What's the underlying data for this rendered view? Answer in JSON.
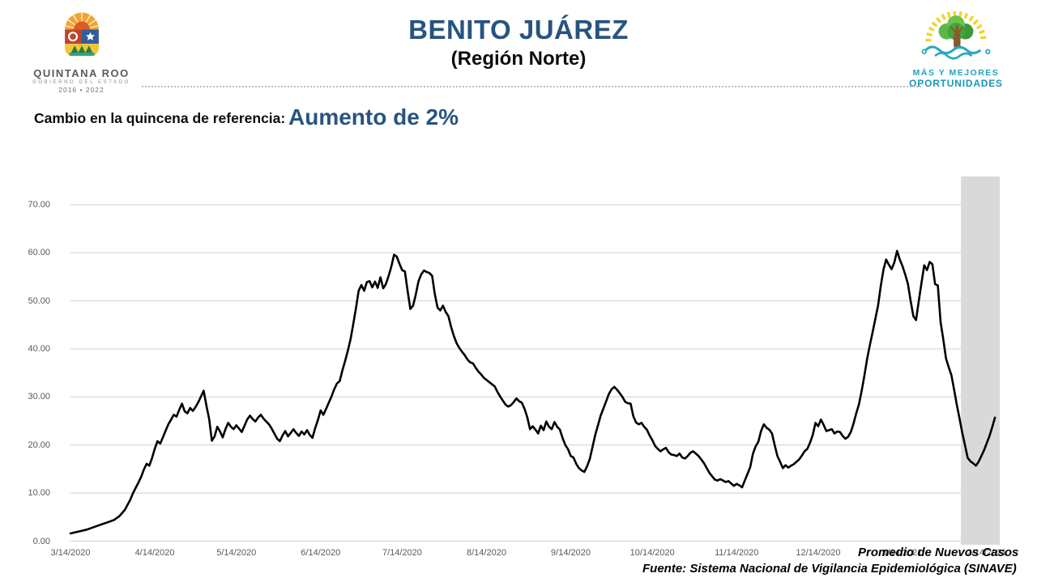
{
  "header": {
    "title": "BENITO JUÁREZ",
    "subtitle": "(Región Norte)",
    "left_logo": {
      "name": "quintana-roo-crest",
      "line1": "QUINTANA ROO",
      "line2": "GOBIERNO DEL ESTADO",
      "line3": "2016 • 2022"
    },
    "right_logo": {
      "name": "mas-y-mejores-tree",
      "line1": "MÁS Y MEJORES",
      "line2": "OPORTUNIDADES"
    }
  },
  "reference": {
    "label": "Cambio en la quincena de referencia:",
    "value": "Aumento de 2%"
  },
  "footer": {
    "source": "Fuente: Sistema Nacional de Vigilancia Epidemiológica (SINAVE)"
  },
  "colors": {
    "title_blue": "#27547f",
    "grid": "#d9d9d9",
    "band": "#d9d9d9",
    "line": "#000000",
    "axis_text": "#595959",
    "teal": "#23a2bd"
  },
  "chart_data": {
    "type": "line",
    "title": "",
    "series_label": "Promedio de Nuevos Casos",
    "xlabel": "",
    "ylabel": "",
    "ylim": [
      0,
      75.7
    ],
    "grid": true,
    "legend_position": "bottom-right-overlapping-axis",
    "start_date": "3/14/2020",
    "x_unit": "days since 3/14/2020",
    "y_ticks": [
      {
        "v": 0,
        "label": "0.00"
      },
      {
        "v": 10,
        "label": "10.00"
      },
      {
        "v": 20,
        "label": "20.00"
      },
      {
        "v": 30,
        "label": "30.00"
      },
      {
        "v": 40,
        "label": "40.00"
      },
      {
        "v": 50,
        "label": "50.00"
      },
      {
        "v": 60,
        "label": "60.00"
      },
      {
        "v": 70,
        "label": "70.00"
      }
    ],
    "x_ticks": [
      {
        "d": 0,
        "label": "3/14/2020"
      },
      {
        "d": 31,
        "label": "4/14/2020"
      },
      {
        "d": 61,
        "label": "5/14/2020"
      },
      {
        "d": 92,
        "label": "6/14/2020"
      },
      {
        "d": 122,
        "label": "7/14/2020"
      },
      {
        "d": 153,
        "label": "8/14/2020"
      },
      {
        "d": 184,
        "label": "9/14/2020"
      },
      {
        "d": 214,
        "label": "10/14/2020"
      },
      {
        "d": 245,
        "label": "11/14/2020"
      },
      {
        "d": 275,
        "label": "12/14/2020"
      },
      {
        "d": 306,
        "label": "1/14/2021"
      },
      {
        "d": 337,
        "label": "2/14/2021"
      }
    ],
    "highlight_band": {
      "start_day": 327.5,
      "end_day": 341.7,
      "meaning": "quincena de referencia"
    },
    "points": [
      [
        0,
        1.6
      ],
      [
        3,
        2.0
      ],
      [
        6,
        2.4
      ],
      [
        9,
        3.0
      ],
      [
        12,
        3.6
      ],
      [
        14,
        4.0
      ],
      [
        16,
        4.4
      ],
      [
        18,
        5.2
      ],
      [
        20,
        6.5
      ],
      [
        22,
        8.6
      ],
      [
        23,
        10.0
      ],
      [
        25,
        12.2
      ],
      [
        26,
        13.4
      ],
      [
        27,
        14.9
      ],
      [
        28,
        16.1
      ],
      [
        29,
        15.7
      ],
      [
        30,
        17.3
      ],
      [
        31,
        19.2
      ],
      [
        32,
        20.8
      ],
      [
        33,
        20.3
      ],
      [
        34,
        21.6
      ],
      [
        35,
        23.0
      ],
      [
        36,
        24.3
      ],
      [
        37,
        25.3
      ],
      [
        38,
        26.3
      ],
      [
        39,
        25.9
      ],
      [
        40,
        27.3
      ],
      [
        41,
        28.6
      ],
      [
        42,
        27.0
      ],
      [
        43,
        26.6
      ],
      [
        44,
        27.7
      ],
      [
        45,
        27.1
      ],
      [
        46,
        27.9
      ],
      [
        47,
        28.9
      ],
      [
        48,
        30.1
      ],
      [
        49,
        31.3
      ],
      [
        50,
        28.2
      ],
      [
        51,
        25.4
      ],
      [
        52,
        20.9
      ],
      [
        53,
        21.8
      ],
      [
        54,
        23.8
      ],
      [
        55,
        22.8
      ],
      [
        56,
        21.6
      ],
      [
        57,
        23.3
      ],
      [
        58,
        24.6
      ],
      [
        59,
        23.8
      ],
      [
        60,
        23.3
      ],
      [
        61,
        24.1
      ],
      [
        62,
        23.4
      ],
      [
        63,
        22.7
      ],
      [
        64,
        24.0
      ],
      [
        65,
        25.3
      ],
      [
        66,
        26.1
      ],
      [
        67,
        25.4
      ],
      [
        68,
        24.9
      ],
      [
        69,
        25.7
      ],
      [
        70,
        26.3
      ],
      [
        71,
        25.5
      ],
      [
        72,
        24.9
      ],
      [
        73,
        24.3
      ],
      [
        74,
        23.4
      ],
      [
        76,
        21.3
      ],
      [
        77,
        20.8
      ],
      [
        78,
        22.0
      ],
      [
        79,
        22.9
      ],
      [
        80,
        21.8
      ],
      [
        81,
        22.5
      ],
      [
        82,
        23.3
      ],
      [
        83,
        22.5
      ],
      [
        84,
        21.9
      ],
      [
        85,
        22.8
      ],
      [
        86,
        22.2
      ],
      [
        87,
        23.1
      ],
      [
        88,
        22.1
      ],
      [
        89,
        21.5
      ],
      [
        90,
        23.5
      ],
      [
        91,
        25.2
      ],
      [
        92,
        27.2
      ],
      [
        93,
        26.3
      ],
      [
        94,
        27.5
      ],
      [
        95,
        28.8
      ],
      [
        96,
        30.1
      ],
      [
        97,
        31.6
      ],
      [
        98,
        32.8
      ],
      [
        99,
        33.3
      ],
      [
        100,
        35.5
      ],
      [
        101,
        37.5
      ],
      [
        102,
        39.6
      ],
      [
        103,
        42.0
      ],
      [
        104,
        45.1
      ],
      [
        105,
        48.5
      ],
      [
        106,
        52.1
      ],
      [
        107,
        53.3
      ],
      [
        108,
        52.1
      ],
      [
        109,
        53.9
      ],
      [
        110,
        54.1
      ],
      [
        111,
        52.8
      ],
      [
        112,
        54.0
      ],
      [
        113,
        52.7
      ],
      [
        114,
        54.9
      ],
      [
        115,
        52.6
      ],
      [
        116,
        53.5
      ],
      [
        117,
        55.2
      ],
      [
        118,
        57.1
      ],
      [
        119,
        59.6
      ],
      [
        120,
        59.2
      ],
      [
        121,
        57.7
      ],
      [
        122,
        56.4
      ],
      [
        123,
        56.1
      ],
      [
        124,
        52.0
      ],
      [
        125,
        48.3
      ],
      [
        126,
        49.0
      ],
      [
        127,
        51.3
      ],
      [
        128,
        54.1
      ],
      [
        129,
        55.5
      ],
      [
        130,
        56.3
      ],
      [
        131,
        56.0
      ],
      [
        132,
        55.8
      ],
      [
        133,
        55.2
      ],
      [
        134,
        51.4
      ],
      [
        135,
        48.6
      ],
      [
        136,
        48.0
      ],
      [
        137,
        49.0
      ],
      [
        138,
        47.7
      ],
      [
        139,
        46.8
      ],
      [
        140,
        44.5
      ],
      [
        141,
        42.7
      ],
      [
        142,
        41.2
      ],
      [
        143,
        40.2
      ],
      [
        144,
        39.4
      ],
      [
        145,
        38.7
      ],
      [
        146,
        37.8
      ],
      [
        147,
        37.2
      ],
      [
        148,
        37.0
      ],
      [
        149,
        36.1
      ],
      [
        150,
        35.3
      ],
      [
        151,
        34.7
      ],
      [
        152,
        34.0
      ],
      [
        154,
        33.1
      ],
      [
        156,
        32.2
      ],
      [
        157,
        31.1
      ],
      [
        158,
        30.1
      ],
      [
        160,
        28.4
      ],
      [
        161,
        28.0
      ],
      [
        162,
        28.3
      ],
      [
        163,
        28.9
      ],
      [
        164,
        29.7
      ],
      [
        165,
        29.1
      ],
      [
        166,
        28.8
      ],
      [
        167,
        27.5
      ],
      [
        168,
        25.8
      ],
      [
        169,
        23.3
      ],
      [
        170,
        23.9
      ],
      [
        171,
        23.2
      ],
      [
        172,
        22.4
      ],
      [
        173,
        24.0
      ],
      [
        174,
        23.1
      ],
      [
        175,
        24.9
      ],
      [
        176,
        23.8
      ],
      [
        177,
        23.3
      ],
      [
        178,
        24.8
      ],
      [
        179,
        23.8
      ],
      [
        180,
        23.2
      ],
      [
        181,
        21.4
      ],
      [
        182,
        20.0
      ],
      [
        183,
        19.1
      ],
      [
        184,
        17.7
      ],
      [
        185,
        17.4
      ],
      [
        186,
        16.1
      ],
      [
        187,
        15.2
      ],
      [
        188,
        14.7
      ],
      [
        189,
        14.4
      ],
      [
        190,
        15.6
      ],
      [
        191,
        17.1
      ],
      [
        192,
        19.6
      ],
      [
        193,
        22.1
      ],
      [
        194,
        24.1
      ],
      [
        195,
        26.1
      ],
      [
        196,
        27.6
      ],
      [
        197,
        29.1
      ],
      [
        198,
        30.6
      ],
      [
        199,
        31.6
      ],
      [
        200,
        32.1
      ],
      [
        201,
        31.5
      ],
      [
        202,
        30.8
      ],
      [
        203,
        30.0
      ],
      [
        204,
        29.0
      ],
      [
        205,
        28.7
      ],
      [
        206,
        28.6
      ],
      [
        207,
        26.0
      ],
      [
        208,
        24.7
      ],
      [
        209,
        24.3
      ],
      [
        210,
        24.6
      ],
      [
        211,
        23.8
      ],
      [
        212,
        23.2
      ],
      [
        213,
        22.0
      ],
      [
        214,
        21.0
      ],
      [
        215,
        19.8
      ],
      [
        216,
        19.2
      ],
      [
        217,
        18.7
      ],
      [
        218,
        19.1
      ],
      [
        219,
        19.4
      ],
      [
        220,
        18.5
      ],
      [
        221,
        18.0
      ],
      [
        222,
        17.9
      ],
      [
        223,
        17.7
      ],
      [
        224,
        18.2
      ],
      [
        225,
        17.4
      ],
      [
        226,
        17.2
      ],
      [
        227,
        17.7
      ],
      [
        228,
        18.4
      ],
      [
        229,
        18.7
      ],
      [
        230,
        18.2
      ],
      [
        231,
        17.7
      ],
      [
        232,
        17.0
      ],
      [
        233,
        16.2
      ],
      [
        234,
        15.2
      ],
      [
        235,
        14.2
      ],
      [
        236,
        13.5
      ],
      [
        237,
        12.8
      ],
      [
        238,
        12.6
      ],
      [
        239,
        12.9
      ],
      [
        240,
        12.6
      ],
      [
        241,
        12.3
      ],
      [
        242,
        12.5
      ],
      [
        243,
        12.0
      ],
      [
        244,
        11.5
      ],
      [
        245,
        11.9
      ],
      [
        246,
        11.6
      ],
      [
        247,
        11.2
      ],
      [
        248,
        12.6
      ],
      [
        249,
        14.0
      ],
      [
        250,
        15.4
      ],
      [
        251,
        18.2
      ],
      [
        252,
        19.7
      ],
      [
        253,
        20.7
      ],
      [
        254,
        22.9
      ],
      [
        255,
        24.3
      ],
      [
        256,
        23.6
      ],
      [
        257,
        23.2
      ],
      [
        258,
        22.4
      ],
      [
        259,
        20.0
      ],
      [
        260,
        17.7
      ],
      [
        261,
        16.5
      ],
      [
        262,
        15.2
      ],
      [
        263,
        15.8
      ],
      [
        264,
        15.3
      ],
      [
        265,
        15.7
      ],
      [
        266,
        16.0
      ],
      [
        267,
        16.5
      ],
      [
        268,
        17.0
      ],
      [
        269,
        17.8
      ],
      [
        270,
        18.7
      ],
      [
        271,
        19.2
      ],
      [
        272,
        20.5
      ],
      [
        273,
        22.1
      ],
      [
        274,
        24.6
      ],
      [
        275,
        23.9
      ],
      [
        276,
        25.3
      ],
      [
        277,
        24.2
      ],
      [
        278,
        22.9
      ],
      [
        279,
        23.1
      ],
      [
        280,
        23.3
      ],
      [
        281,
        22.4
      ],
      [
        282,
        22.8
      ],
      [
        283,
        22.7
      ],
      [
        284,
        21.9
      ],
      [
        285,
        21.3
      ],
      [
        286,
        21.7
      ],
      [
        287,
        22.7
      ],
      [
        288,
        24.5
      ],
      [
        289,
        26.6
      ],
      [
        290,
        28.5
      ],
      [
        291,
        31.3
      ],
      [
        292,
        34.5
      ],
      [
        293,
        37.9
      ],
      [
        294,
        40.8
      ],
      [
        295,
        43.4
      ],
      [
        296,
        46.2
      ],
      [
        297,
        49.0
      ],
      [
        298,
        53.0
      ],
      [
        299,
        56.5
      ],
      [
        300,
        58.6
      ],
      [
        301,
        57.5
      ],
      [
        302,
        56.6
      ],
      [
        303,
        58.0
      ],
      [
        304,
        60.4
      ],
      [
        305,
        58.6
      ],
      [
        306,
        57.2
      ],
      [
        307,
        55.5
      ],
      [
        308,
        53.5
      ],
      [
        309,
        50.0
      ],
      [
        310,
        46.8
      ],
      [
        311,
        46.0
      ],
      [
        312,
        50.0
      ],
      [
        313,
        53.8
      ],
      [
        314,
        57.4
      ],
      [
        315,
        56.4
      ],
      [
        316,
        58.1
      ],
      [
        317,
        57.6
      ],
      [
        318,
        53.5
      ],
      [
        319,
        53.2
      ],
      [
        320,
        45.6
      ],
      [
        321,
        42.0
      ],
      [
        322,
        38.0
      ],
      [
        323,
        36.2
      ],
      [
        324,
        34.5
      ],
      [
        325,
        31.5
      ],
      [
        326,
        28.3
      ],
      [
        327,
        25.5
      ],
      [
        328,
        22.5
      ],
      [
        329,
        19.9
      ],
      [
        330,
        17.3
      ],
      [
        331,
        16.6
      ],
      [
        332,
        16.2
      ],
      [
        333,
        15.7
      ],
      [
        334,
        16.5
      ],
      [
        335,
        17.7
      ],
      [
        336,
        18.9
      ],
      [
        337,
        20.4
      ],
      [
        338,
        21.9
      ],
      [
        339,
        23.7
      ],
      [
        340,
        25.7
      ]
    ]
  }
}
